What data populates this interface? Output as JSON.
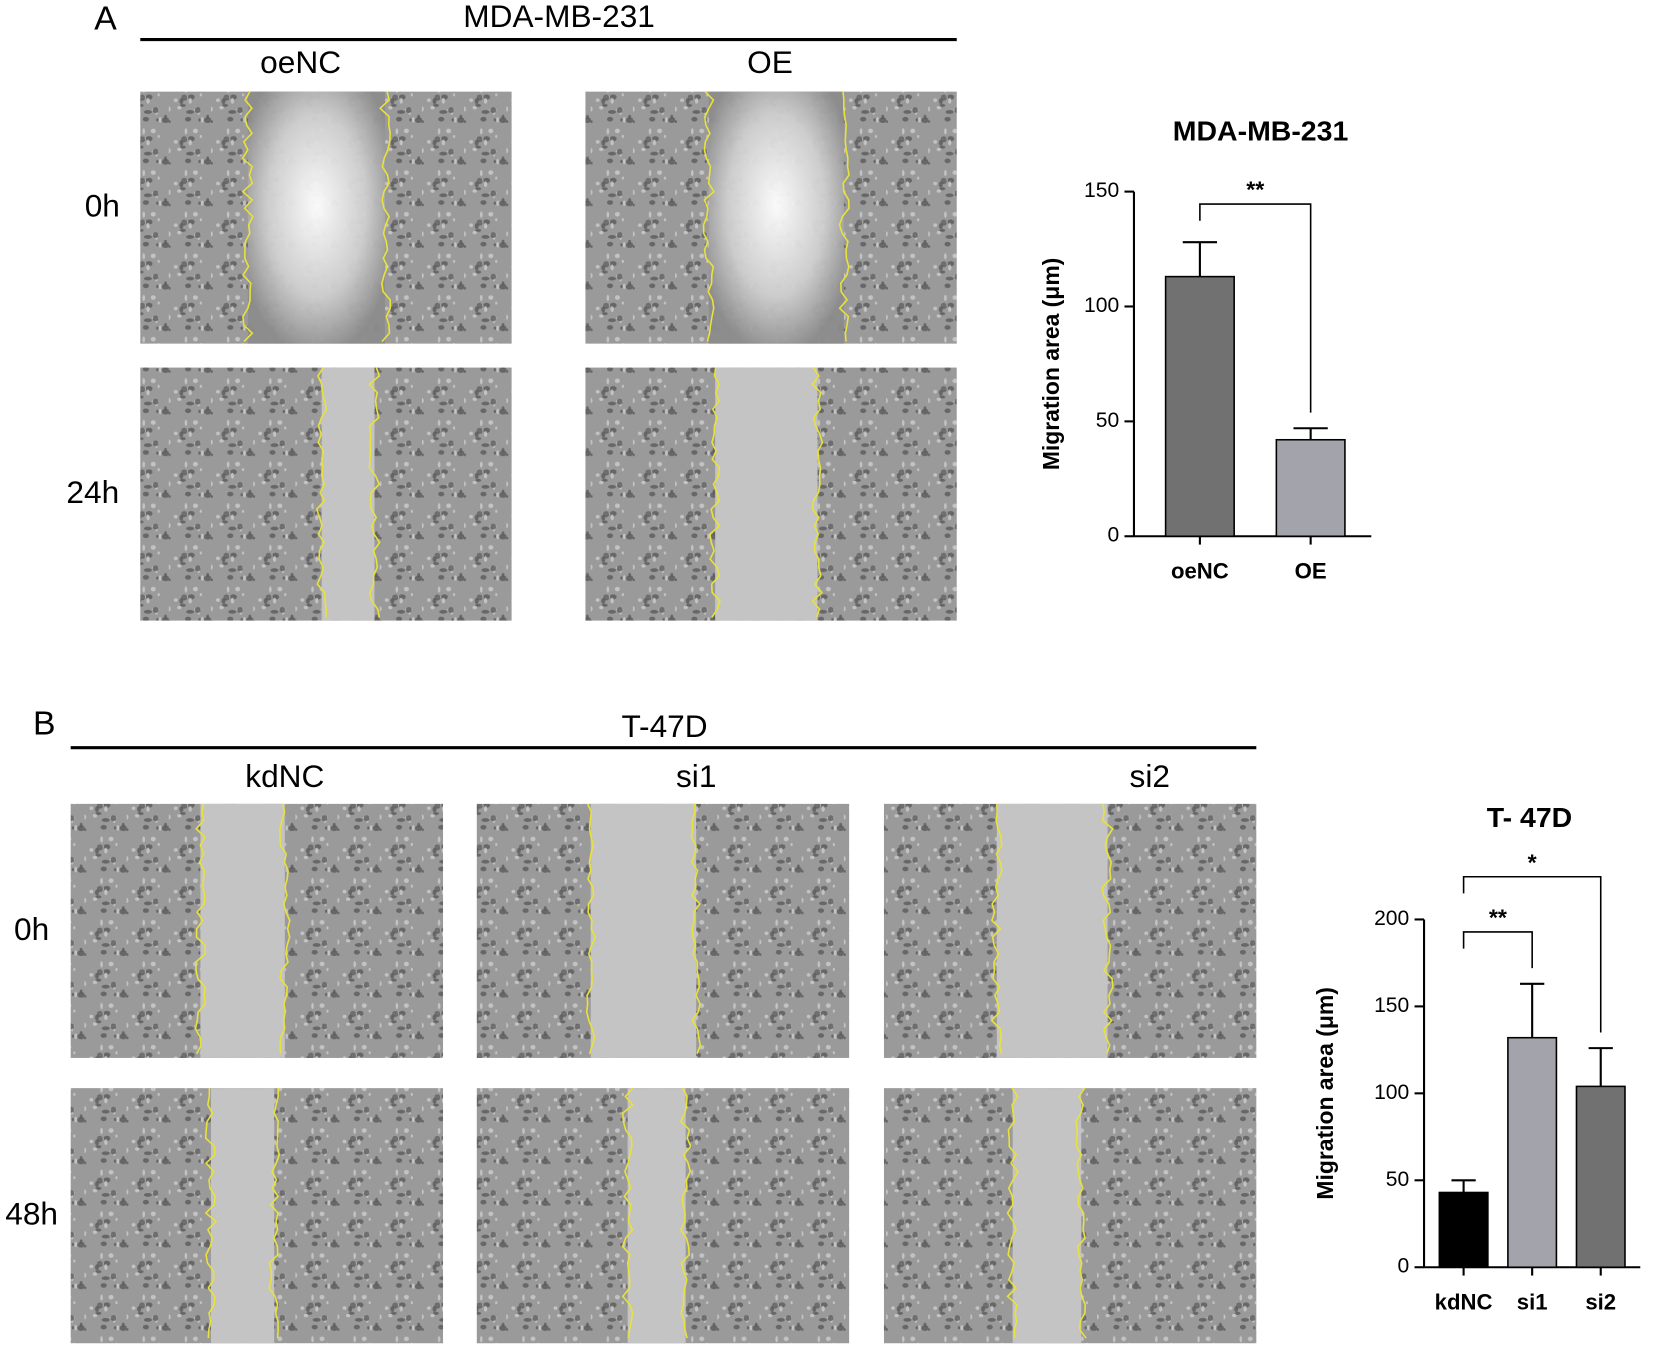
{
  "panels": [
    {
      "label": "A",
      "cell_line": "MDA-MB-231",
      "columns": [
        "oeNC",
        "OE"
      ],
      "rows": [
        "0h",
        "24h"
      ]
    },
    {
      "label": "B",
      "cell_line": "T-47D",
      "columns": [
        "kdNC",
        "si1",
        "si2"
      ],
      "rows": [
        "0h",
        "48h"
      ]
    }
  ],
  "chart_data": [
    {
      "type": "bar",
      "title": "MDA-MB-231",
      "y_label": "Migration area (μm)",
      "categories": [
        "oeNC",
        "OE"
      ],
      "values": [
        113,
        42
      ],
      "errors": [
        15,
        5
      ],
      "colors": [
        "#717171",
        "#a3a3ab"
      ],
      "ylim": [
        0,
        150
      ],
      "yticks": [
        0,
        50,
        100,
        150
      ],
      "significance": [
        {
          "between": [
            "oeNC",
            "OE"
          ],
          "label": "**"
        }
      ]
    },
    {
      "type": "bar",
      "title": "T- 47D",
      "y_label": "Migration area (μm)",
      "categories": [
        "kdNC",
        "si1",
        "si2"
      ],
      "values": [
        43,
        132,
        104
      ],
      "errors": [
        7,
        31,
        22
      ],
      "colors": [
        "#000000",
        "#a3a3ab",
        "#717171"
      ],
      "ylim": [
        0,
        200
      ],
      "yticks": [
        0,
        50,
        100,
        150,
        200
      ],
      "significance": [
        {
          "between": [
            "kdNC",
            "si1"
          ],
          "label": "**"
        },
        {
          "between": [
            "kdNC",
            "si2"
          ],
          "label": "*"
        }
      ]
    }
  ]
}
